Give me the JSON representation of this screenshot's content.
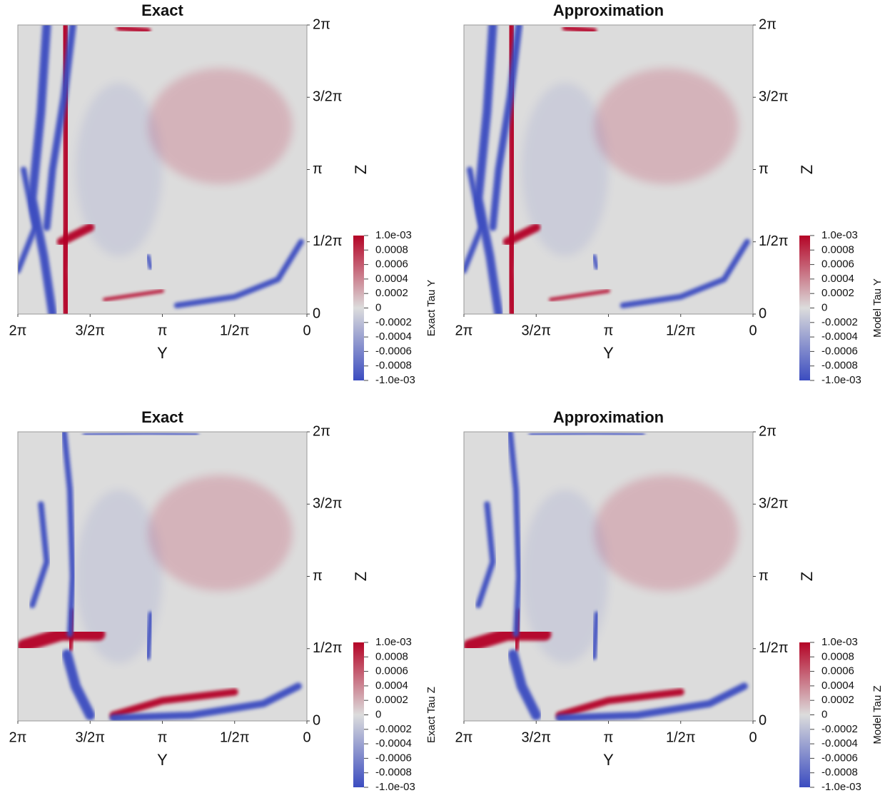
{
  "chart_data": [
    {
      "type": "heatmap",
      "title": "Exact",
      "xlabel": "Y",
      "ylabel": "Z",
      "colorbar_label": "Exact Tau Y",
      "xlim": [
        6.283,
        0
      ],
      "ylim": [
        0,
        6.283
      ],
      "xticks": [
        {
          "value": 6.283,
          "label": "2π"
        },
        {
          "value": 4.712,
          "label": "3/2π"
        },
        {
          "value": 3.1416,
          "label": "π"
        },
        {
          "value": 1.5708,
          "label": "1/2π"
        },
        0
      ],
      "yticks": [
        0,
        {
          "value": 1.5708,
          "label": "1/2π"
        },
        {
          "value": 3.1416,
          "label": "π"
        },
        {
          "value": 4.712,
          "label": "3/2π"
        },
        {
          "value": 6.283,
          "label": "2π"
        }
      ],
      "clim": [
        -0.001,
        0.001
      ],
      "colormap": [
        "#3b4cc0",
        "#dcdcdc",
        "#b40426"
      ],
      "cticks": [
        {
          "value": 0.001,
          "label": "1.0e-03"
        },
        0.0008,
        0.0006,
        0.0004,
        0.0002,
        0,
        -0.0002,
        -0.0004,
        -0.0006,
        -0.0008,
        {
          "value": -0.001,
          "label": "-1.0e-03"
        }
      ]
    },
    {
      "type": "heatmap",
      "title": "Approximation",
      "xlabel": "Y",
      "ylabel": "Z",
      "colorbar_label": "Model Tau Y",
      "xlim": [
        6.283,
        0
      ],
      "ylim": [
        0,
        6.283
      ],
      "xticks": [
        {
          "value": 6.283,
          "label": "2π"
        },
        {
          "value": 4.712,
          "label": "3/2π"
        },
        {
          "value": 3.1416,
          "label": "π"
        },
        {
          "value": 1.5708,
          "label": "1/2π"
        },
        0
      ],
      "yticks": [
        0,
        {
          "value": 1.5708,
          "label": "1/2π"
        },
        {
          "value": 3.1416,
          "label": "π"
        },
        {
          "value": 4.712,
          "label": "3/2π"
        },
        {
          "value": 6.283,
          "label": "2π"
        }
      ],
      "clim": [
        -0.001,
        0.001
      ],
      "colormap": [
        "#3b4cc0",
        "#dcdcdc",
        "#b40426"
      ],
      "cticks": [
        {
          "value": 0.001,
          "label": "1.0e-03"
        },
        0.0008,
        0.0006,
        0.0004,
        0.0002,
        0,
        -0.0002,
        -0.0004,
        -0.0006,
        -0.0008,
        {
          "value": -0.001,
          "label": "-1.0e-03"
        }
      ]
    },
    {
      "type": "heatmap",
      "title": "Exact",
      "xlabel": "Y",
      "ylabel": "Z",
      "colorbar_label": "Exact Tau Z",
      "xlim": [
        6.283,
        0
      ],
      "ylim": [
        0,
        6.283
      ],
      "xticks": [
        {
          "value": 6.283,
          "label": "2π"
        },
        {
          "value": 4.712,
          "label": "3/2π"
        },
        {
          "value": 3.1416,
          "label": "π"
        },
        {
          "value": 1.5708,
          "label": "1/2π"
        },
        0
      ],
      "yticks": [
        0,
        {
          "value": 1.5708,
          "label": "1/2π"
        },
        {
          "value": 3.1416,
          "label": "π"
        },
        {
          "value": 4.712,
          "label": "3/2π"
        },
        {
          "value": 6.283,
          "label": "2π"
        }
      ],
      "clim": [
        -0.001,
        0.001
      ],
      "colormap": [
        "#3b4cc0",
        "#dcdcdc",
        "#b40426"
      ],
      "cticks": [
        {
          "value": 0.001,
          "label": "1.0e-03"
        },
        0.0008,
        0.0006,
        0.0004,
        0.0002,
        0,
        -0.0002,
        -0.0004,
        -0.0006,
        -0.0008,
        {
          "value": -0.001,
          "label": "-1.0e-03"
        }
      ]
    },
    {
      "type": "heatmap",
      "title": "Approximation",
      "xlabel": "Y",
      "ylabel": "Z",
      "colorbar_label": "Model Tau Z",
      "xlim": [
        6.283,
        0
      ],
      "ylim": [
        0,
        6.283
      ],
      "xticks": [
        {
          "value": 6.283,
          "label": "2π"
        },
        {
          "value": 4.712,
          "label": "3/2π"
        },
        {
          "value": 3.1416,
          "label": "π"
        },
        {
          "value": 1.5708,
          "label": "1/2π"
        },
        0
      ],
      "yticks": [
        0,
        {
          "value": 1.5708,
          "label": "1/2π"
        },
        {
          "value": 3.1416,
          "label": "π"
        },
        {
          "value": 4.712,
          "label": "3/2π"
        },
        {
          "value": 6.283,
          "label": "2π"
        }
      ],
      "clim": [
        -0.001,
        0.001
      ],
      "colormap": [
        "#3b4cc0",
        "#dcdcdc",
        "#b40426"
      ],
      "cticks": [
        {
          "value": 0.001,
          "label": "1.0e-03"
        },
        0.0008,
        0.0006,
        0.0004,
        0.0002,
        0,
        -0.0002,
        -0.0004,
        -0.0006,
        -0.0008,
        {
          "value": -0.001,
          "label": "-1.0e-03"
        }
      ]
    }
  ]
}
